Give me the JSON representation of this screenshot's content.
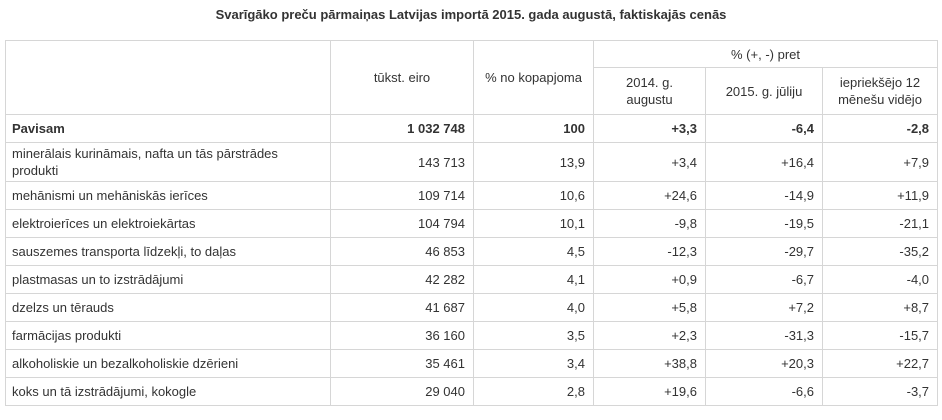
{
  "title": "Svarīgāko preču pārmaiņas Latvijas importā 2015. gada augustā, faktiskajās cenās",
  "headers": {
    "value": "tūkst. eiro",
    "share": "% no kopapjoma",
    "change_group": "% (+, -) pret",
    "change_cols": [
      "2014. g. augustu",
      "2015. g. jūliju",
      "iepriekšējo 12 mēnešu vidējo"
    ]
  },
  "rows": [
    {
      "name": "Pavisam",
      "value": "1 032 748",
      "share": "100",
      "c1": "+3,3",
      "c2": "-6,4",
      "c3": "-2,8"
    },
    {
      "name": "minerālais kurināmais, nafta un tās pārstrādes produkti",
      "value": "143 713",
      "share": "13,9",
      "c1": "+3,4",
      "c2": "+16,4",
      "c3": "+7,9"
    },
    {
      "name": "mehānismi un mehāniskās ierīces",
      "value": "109 714",
      "share": "10,6",
      "c1": "+24,6",
      "c2": "-14,9",
      "c3": "+11,9"
    },
    {
      "name": "elektroierīces un elektroiekārtas",
      "value": "104 794",
      "share": "10,1",
      "c1": "-9,8",
      "c2": "-19,5",
      "c3": "-21,1"
    },
    {
      "name": "sauszemes transporta līdzekļi, to daļas",
      "value": "46 853",
      "share": "4,5",
      "c1": "-12,3",
      "c2": "-29,7",
      "c3": "-35,2"
    },
    {
      "name": "plastmasas un to izstrādājumi",
      "value": "42 282",
      "share": "4,1",
      "c1": "+0,9",
      "c2": "-6,7",
      "c3": "-4,0"
    },
    {
      "name": "dzelzs un tērauds",
      "value": "41 687",
      "share": "4,0",
      "c1": "+5,8",
      "c2": "+7,2",
      "c3": "+8,7"
    },
    {
      "name": "farmācijas produkti",
      "value": "36 160",
      "share": "3,5",
      "c1": "+2,3",
      "c2": "-31,3",
      "c3": "-15,7"
    },
    {
      "name": "alkoholiskie un bezalkoholiskie dzērieni",
      "value": "35 461",
      "share": "3,4",
      "c1": "+38,8",
      "c2": "+20,3",
      "c3": "+22,7"
    },
    {
      "name": "koks un tā izstrādājumi, kokogle",
      "value": "29 040",
      "share": "2,8",
      "c1": "+19,6",
      "c2": "-6,6",
      "c3": "-3,7"
    }
  ]
}
